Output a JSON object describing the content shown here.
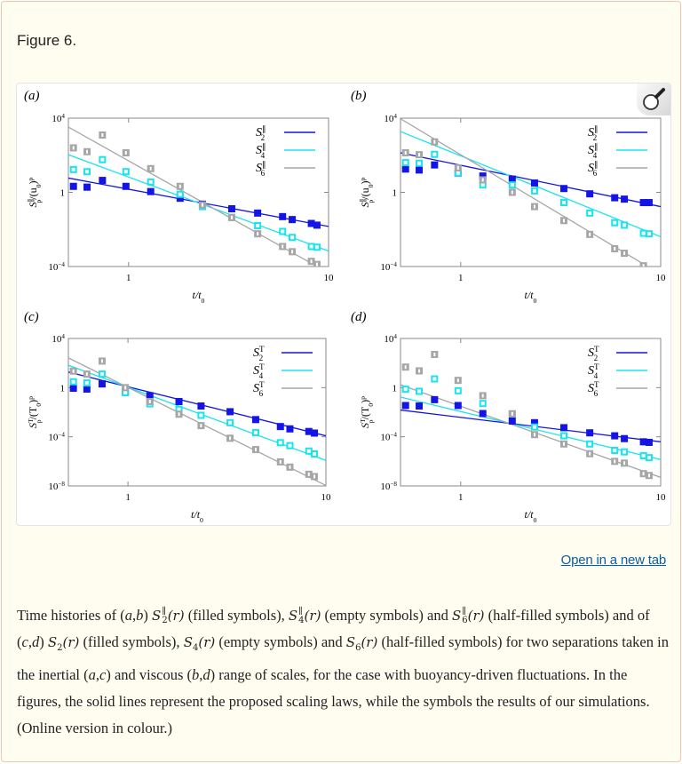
{
  "figure": {
    "title": "Figure 6.",
    "open_link": "Open in a new tab",
    "zoom_icon": "magnifier-icon",
    "caption": [
      {
        "text": "Time histories of ("
      },
      {
        "it": "a"
      },
      {
        "text": ","
      },
      {
        "it": "b"
      },
      {
        "text": ") "
      },
      {
        "math": "S^{∥}_{2}(r)"
      },
      {
        "text": " (filled symbols), "
      },
      {
        "math": "S^{∥}_{4}(r)"
      },
      {
        "text": " (empty symbols) and "
      },
      {
        "math": "S^{∥}_{6}(r)"
      },
      {
        "text": " (half-filled symbols) and of ("
      },
      {
        "it": "c"
      },
      {
        "text": ","
      },
      {
        "it": "d"
      },
      {
        "text": ") "
      },
      {
        "math": "S_{2}(r)"
      },
      {
        "text": " (filled symbols), "
      },
      {
        "math": "S_{4}(r)"
      },
      {
        "text": " (empty symbols) and "
      },
      {
        "math": "S_{6}(r)"
      },
      {
        "text": " (half-filled symbols) for two separations taken in the inertial ("
      },
      {
        "it": "a"
      },
      {
        "text": ","
      },
      {
        "it": "c"
      },
      {
        "text": ") and viscous ("
      },
      {
        "it": "b"
      },
      {
        "text": ","
      },
      {
        "it": "d"
      },
      {
        "text": ") range of scales, for the case with buoyancy-driven fluctuations. In the figures, the solid lines represent the proposed scaling laws, while the symbols the results of our simulations. (Online version in colour.)"
      }
    ]
  },
  "colors": {
    "S2": "#1414e6",
    "S4": "#18e4f0",
    "S6": "#a6a6a6"
  },
  "chart_data": [
    {
      "panel": "(a)",
      "type": "scatter+line",
      "xscale": "log",
      "yscale": "log",
      "xlabel": "t/t_{0}",
      "ylabel": "S^{∥}_{p}/(u_{0})^{p}",
      "xlim": [
        0.5,
        10
      ],
      "ylim": [
        0.0001,
        10000.0
      ],
      "xticks": [
        {
          "v": 1,
          "l": "1"
        },
        {
          "v": 10,
          "l": "10"
        }
      ],
      "yticks": [
        {
          "v": 10000.0,
          "l": "10^{4}"
        },
        {
          "v": 1,
          "l": "1"
        },
        {
          "v": 0.0001,
          "l": "10^{−4}"
        }
      ],
      "legend": "top-right",
      "x": [
        0.53,
        0.62,
        0.74,
        0.97,
        1.29,
        1.81,
        2.34,
        3.28,
        4.42,
        5.89,
        6.58,
        8.2,
        8.75
      ],
      "series": [
        {
          "name": "S^{∥}_{2}",
          "color_key": "S2",
          "marker": "filled",
          "values": [
            2.1,
            1.9,
            4.4,
            2.1,
            1.1,
            0.48,
            0.23,
            0.13,
            0.076,
            0.049,
            0.034,
            0.021,
            0.017
          ],
          "fit": [
            [
              0.5,
              5.9
            ],
            [
              10,
              0.0145
            ]
          ]
        },
        {
          "name": "S^{∥}_{4}",
          "color_key": "S4",
          "marker": "empty",
          "values": [
            17,
            13,
            58,
            13,
            3.6,
            0.78,
            0.17,
            0.044,
            0.016,
            0.0078,
            0.0037,
            0.0012,
            0.0011
          ],
          "fit": [
            [
              0.5,
              107
            ],
            [
              10,
              0.00068
            ]
          ]
        },
        {
          "name": "S^{∥}_{6}",
          "color_key": "S6",
          "marker": "half",
          "values": [
            250,
            155,
            1230,
            135,
            19,
            2.1,
            0.21,
            0.044,
            0.0058,
            0.0012,
            0.00063,
            0.00019,
            0.00013
          ],
          "fit": [
            [
              0.5,
              3300
            ],
            [
              10,
              4.5e-05
            ]
          ]
        }
      ]
    },
    {
      "panel": "(b)",
      "type": "scatter+line",
      "xscale": "log",
      "yscale": "log",
      "xlabel": "t/t_{0}",
      "ylabel": "S^{∥}_{p}/(u_{0})^{p}",
      "xlim": [
        0.5,
        10
      ],
      "ylim": [
        0.0001,
        10000.0
      ],
      "xticks": [
        {
          "v": 1,
          "l": "1"
        },
        {
          "v": 10,
          "l": "10"
        }
      ],
      "yticks": [
        {
          "v": 10000.0,
          "l": "10^{4}"
        },
        {
          "v": 1,
          "l": "1"
        },
        {
          "v": 0.0001,
          "l": "10^{−4}"
        }
      ],
      "legend": "top-right",
      "x": [
        0.53,
        0.62,
        0.74,
        0.97,
        1.29,
        1.81,
        2.34,
        3.28,
        4.42,
        5.89,
        6.58,
        8.2,
        8.75
      ],
      "series": [
        {
          "name": "S^{∥}_{2}",
          "color_key": "S2",
          "marker": "filled",
          "values": [
            18,
            16,
            30,
            11,
            7.6,
            5.2,
            3.2,
            1.6,
            0.83,
            0.51,
            0.43,
            0.28,
            0.28
          ],
          "fit": [
            [
              0.5,
              135
            ],
            [
              10,
              0.17
            ]
          ]
        },
        {
          "name": "S^{∥}_{4}",
          "color_key": "S4",
          "marker": "empty",
          "values": [
            40,
            37,
            112,
            11,
            2.5,
            2.5,
            1.2,
            0.28,
            0.076,
            0.023,
            0.017,
            0.0062,
            0.0058
          ],
          "fit": [
            [
              0.5,
              1900
            ],
            [
              10,
              0.004
            ]
          ]
        },
        {
          "name": "S^{∥}_{6}",
          "color_key": "S6",
          "marker": "half",
          "values": [
            135,
            107,
            525,
            21,
            4.7,
            1,
            0.17,
            0.03,
            0.0054,
            0.00091,
            0.00052,
            0.00011,
            null
          ],
          "fit": [
            [
              0.5,
              9300
            ],
            [
              10,
              3.8e-05
            ]
          ]
        }
      ]
    },
    {
      "panel": "(c)",
      "type": "scatter+line",
      "xscale": "log",
      "yscale": "log",
      "xlabel": "t/t_{0}",
      "ylabel": "S^{T}_{p}/(T_{0})^{p}",
      "xlim": [
        0.5,
        10
      ],
      "ylim": [
        1e-08,
        10000.0
      ],
      "xticks": [
        {
          "v": 1,
          "l": "1"
        },
        {
          "v": 10,
          "l": "10"
        }
      ],
      "yticks": [
        {
          "v": 10000.0,
          "l": "10^{4}"
        },
        {
          "v": 1,
          "l": "1"
        },
        {
          "v": 0.0001,
          "l": "10^{−4}"
        },
        {
          "v": 1e-08,
          "l": "10^{−8}"
        }
      ],
      "legend": "top-right",
      "x": [
        0.53,
        0.62,
        0.74,
        0.97,
        1.29,
        1.81,
        2.34,
        3.28,
        4.42,
        5.89,
        6.58,
        8.2,
        8.75
      ],
      "series": [
        {
          "name": "S^{T}_{2}",
          "color_key": "S2",
          "marker": "filled",
          "values": [
            0.89,
            0.76,
            2.0,
            0.44,
            0.22,
            0.074,
            0.032,
            0.011,
            0.0025,
            0.00068,
            0.00044,
            0.00027,
            0.0002
          ],
          "fit": [
            [
              0.5,
              18.6
            ],
            [
              10,
              0.00012
            ]
          ]
        },
        {
          "name": "S^{T}_{4}",
          "color_key": "S4",
          "marker": "empty",
          "values": [
            3.0,
            2.4,
            12.6,
            0.39,
            0.048,
            0.017,
            0.0056,
            0.0014,
            0.00022,
            3.3e-05,
            1.9e-05,
            6.9e-06,
            4e-06
          ],
          "fit": [
            [
              0.5,
              66
            ],
            [
              10,
              1.2e-06
            ]
          ]
        },
        {
          "name": "S^{T}_{6}",
          "color_key": "S6",
          "marker": "half",
          "values": [
            22,
            12.6,
            145,
            1.0,
            0.074,
            0.0069,
            0.00081,
            7.6e-05,
            9.1e-06,
            9.1e-07,
            3.4e-07,
            8.9e-08,
            5.8e-08
          ],
          "fit": [
            [
              0.5,
              263
            ],
            [
              10,
              1.1e-08
            ]
          ]
        }
      ]
    },
    {
      "panel": "(d)",
      "type": "scatter+line",
      "xscale": "log",
      "yscale": "log",
      "xlabel": "t/t_{0}",
      "ylabel": "S^{T}_{p}/(T_{0})^{p}",
      "xlim": [
        0.5,
        10
      ],
      "ylim": [
        1e-08,
        10000.0
      ],
      "xticks": [
        {
          "v": 1,
          "l": "1"
        },
        {
          "v": 10,
          "l": "10"
        }
      ],
      "yticks": [
        {
          "v": 10000.0,
          "l": "10^{4}"
        },
        {
          "v": 1,
          "l": "1"
        },
        {
          "v": 0.0001,
          "l": "10^{−4}"
        },
        {
          "v": 1e-08,
          "l": "10^{−8}"
        }
      ],
      "legend": "top-right",
      "x": [
        0.53,
        0.62,
        0.74,
        0.97,
        1.29,
        1.81,
        2.34,
        3.28,
        4.42,
        5.89,
        6.58,
        8.2,
        8.75
      ],
      "series": [
        {
          "name": "S^{T}_{2}",
          "color_key": "S2",
          "marker": "filled",
          "values": [
            0.035,
            0.032,
            0.105,
            0.035,
            0.0078,
            0.0019,
            0.0014,
            0.00055,
            0.00021,
            0.00012,
            7.1e-05,
            3.9e-05,
            3.5e-05
          ],
          "fit": [
            [
              0.5,
              0.015
            ],
            [
              10,
              3.9e-05
            ]
          ]
        },
        {
          "name": "S^{T}_{4}",
          "color_key": "S4",
          "marker": "empty",
          "values": [
            0.74,
            0.5,
            5.1,
            0.56,
            0.051,
            0.0074,
            0.00062,
            0.00012,
            2.6e-05,
            7.8e-06,
            5.9e-06,
            2.9e-06,
            2e-06
          ],
          "fit": [
            [
              0.5,
              0.17
            ],
            [
              10,
              1.4e-06
            ]
          ]
        },
        {
          "name": "S^{T}_{6}",
          "color_key": "S6",
          "marker": "half",
          "values": [
            47,
            23,
            500,
            3.9,
            0.22,
            0.0074,
            0.00015,
            2.6e-05,
            4.2e-06,
            1e-06,
            7.2e-07,
            1e-07,
            7.1e-08
          ],
          "fit": [
            [
              0.5,
              1.7
            ],
            [
              10,
              5e-08
            ]
          ]
        }
      ]
    }
  ]
}
